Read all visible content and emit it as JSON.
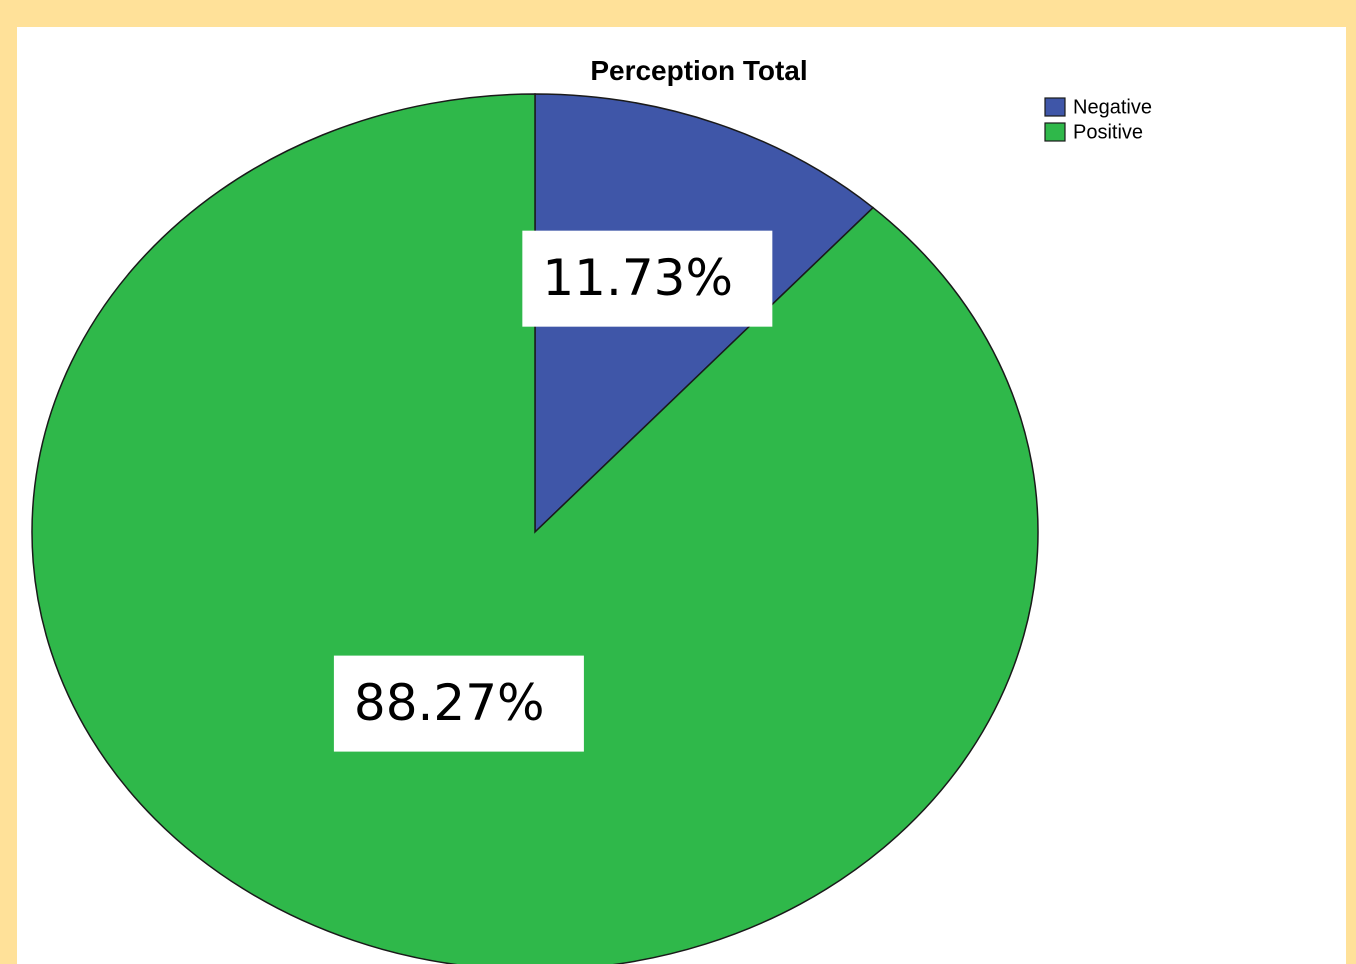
{
  "chart_data": {
    "type": "pie",
    "title": "Perception Total",
    "categories": [
      "Negative",
      "Positive"
    ],
    "values": [
      11.73,
      88.27
    ],
    "value_labels": [
      "11.73%",
      "88.27%"
    ],
    "colors": [
      "#3f56a8",
      "#2fb84a"
    ],
    "legend": "top-right"
  }
}
